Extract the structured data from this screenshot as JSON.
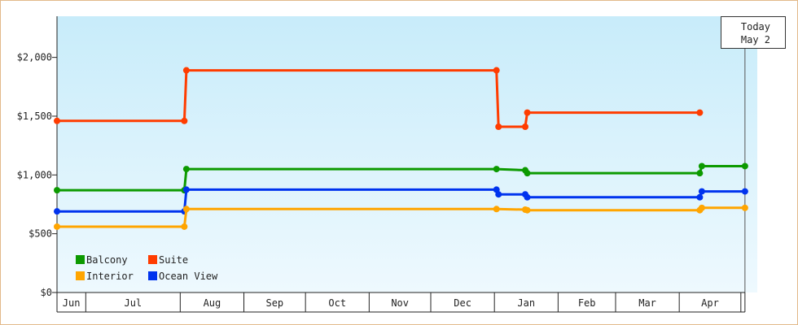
{
  "chart_data": {
    "type": "line",
    "ylabel": "",
    "xlabel": "",
    "ylim": [
      0,
      2350
    ],
    "y_ticks": [
      {
        "value": 0,
        "label": "$0"
      },
      {
        "value": 500,
        "label": "$500"
      },
      {
        "value": 1000,
        "label": "$1,000"
      },
      {
        "value": 1500,
        "label": "$1,500"
      },
      {
        "value": 2000,
        "label": "$2,000"
      }
    ],
    "x_start": "2024-06-01",
    "x_end": "2025-05-08",
    "months": [
      {
        "label": "Jun",
        "start": "2024-06-01"
      },
      {
        "label": "Jul",
        "start": "2024-06-15"
      },
      {
        "label": "Aug",
        "start": "2024-07-31"
      },
      {
        "label": "Sep",
        "start": "2024-08-31"
      },
      {
        "label": "Oct",
        "start": "2024-09-30"
      },
      {
        "label": "Nov",
        "start": "2024-10-31"
      },
      {
        "label": "Dec",
        "start": "2024-11-30"
      },
      {
        "label": "Jan",
        "start": "2024-12-31"
      },
      {
        "label": "Feb",
        "start": "2025-01-31"
      },
      {
        "label": "Mar",
        "start": "2025-02-28"
      },
      {
        "label": "Apr",
        "start": "2025-03-31"
      }
    ],
    "month_end": "2025-04-30",
    "today": {
      "line1": "Today",
      "line2": "May 2",
      "date": "2025-05-02"
    },
    "series": [
      {
        "name": "Suite",
        "color": "#ff3c00",
        "points": [
          [
            "2024-06-01",
            1460
          ],
          [
            "2024-08-02",
            1460
          ],
          [
            "2024-08-03",
            1890
          ],
          [
            "2025-01-01",
            1890
          ],
          [
            "2025-01-02",
            1410
          ],
          [
            "2025-01-15",
            1410
          ],
          [
            "2025-01-16",
            1530
          ],
          [
            "2025-04-10",
            1530
          ]
        ]
      },
      {
        "name": "Balcony",
        "color": "#0c9a00",
        "points": [
          [
            "2024-06-01",
            870
          ],
          [
            "2024-08-02",
            870
          ],
          [
            "2024-08-03",
            1050
          ],
          [
            "2025-01-01",
            1050
          ],
          [
            "2025-01-15",
            1040
          ],
          [
            "2025-01-16",
            1015
          ],
          [
            "2025-04-10",
            1015
          ],
          [
            "2025-04-11",
            1075
          ],
          [
            "2025-05-02",
            1075
          ]
        ]
      },
      {
        "name": "Ocean View",
        "color": "#0033ee",
        "points": [
          [
            "2024-06-01",
            690
          ],
          [
            "2024-08-02",
            690
          ],
          [
            "2024-08-03",
            875
          ],
          [
            "2025-01-01",
            875
          ],
          [
            "2025-01-02",
            835
          ],
          [
            "2025-01-15",
            835
          ],
          [
            "2025-01-16",
            810
          ],
          [
            "2025-04-10",
            810
          ],
          [
            "2025-04-11",
            860
          ],
          [
            "2025-05-02",
            860
          ]
        ]
      },
      {
        "name": "Interior",
        "color": "#ffa500",
        "points": [
          [
            "2024-06-01",
            560
          ],
          [
            "2024-08-02",
            560
          ],
          [
            "2024-08-03",
            710
          ],
          [
            "2025-01-01",
            710
          ],
          [
            "2025-01-15",
            705
          ],
          [
            "2025-01-16",
            700
          ],
          [
            "2025-04-10",
            700
          ],
          [
            "2025-04-11",
            720
          ],
          [
            "2025-05-02",
            720
          ]
        ]
      }
    ],
    "legend": {
      "placement": "bottom-left",
      "rows": [
        [
          "Balcony",
          "Suite"
        ],
        [
          "Interior",
          "Ocean View"
        ]
      ]
    }
  }
}
